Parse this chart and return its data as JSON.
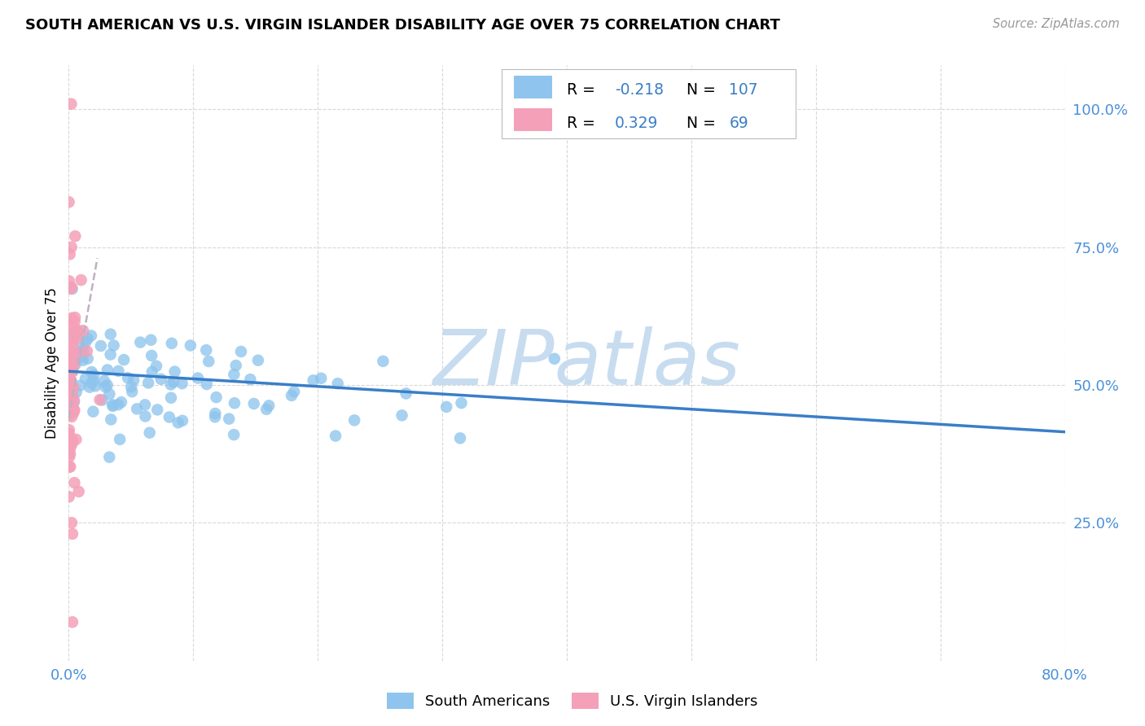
{
  "title": "SOUTH AMERICAN VS U.S. VIRGIN ISLANDER DISABILITY AGE OVER 75 CORRELATION CHART",
  "source": "Source: ZipAtlas.com",
  "ylabel": "Disability Age Over 75",
  "xlim": [
    0.0,
    0.8
  ],
  "ylim": [
    0.0,
    1.08
  ],
  "xtick_positions": [
    0.0,
    0.1,
    0.2,
    0.3,
    0.4,
    0.5,
    0.6,
    0.7,
    0.8
  ],
  "xticklabels": [
    "0.0%",
    "",
    "",
    "",
    "",
    "",
    "",
    "",
    "80.0%"
  ],
  "yticks_right": [
    0.25,
    0.5,
    0.75,
    1.0
  ],
  "ytick_right_labels": [
    "25.0%",
    "50.0%",
    "75.0%",
    "100.0%"
  ],
  "blue_color": "#8EC4ED",
  "pink_color": "#F4A0B8",
  "blue_line_color": "#3A7EC8",
  "gray_dash_color": "#C0B0C0",
  "grid_color": "#D8D8D8",
  "watermark": "ZIPatlas",
  "watermark_color": "#C8DCF0",
  "blue_R": -0.218,
  "blue_N": 107,
  "pink_R": 0.329,
  "pink_N": 69,
  "figsize": [
    14.06,
    8.92
  ],
  "dpi": 100,
  "blue_trend_x0": 0.0,
  "blue_trend_x1": 0.8,
  "blue_trend_y0": 0.525,
  "blue_trend_y1": 0.415,
  "pink_trend_x0": 0.0,
  "pink_trend_x1": 0.023,
  "pink_trend_y0": 0.44,
  "pink_trend_y1": 0.73
}
